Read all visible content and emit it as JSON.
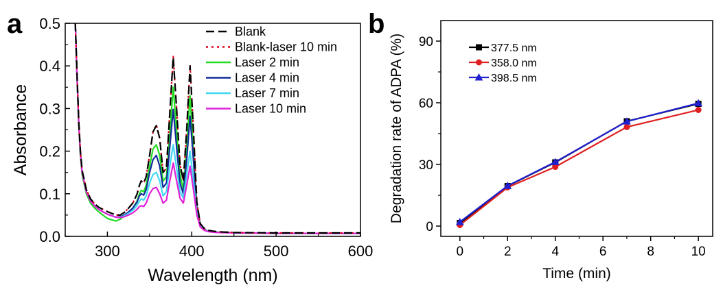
{
  "panels": [
    {
      "letter": "a"
    },
    {
      "letter": "b"
    }
  ],
  "chart_data": [
    {
      "type": "line",
      "xlabel": "Wavelength (nm)",
      "ylabel": "Absorbance",
      "xlim": [
        250,
        600
      ],
      "ylim": [
        0,
        0.5
      ],
      "xticks": [
        300,
        400,
        500,
        600
      ],
      "yticks": [
        0.0,
        0.1,
        0.2,
        0.3,
        0.4,
        0.5
      ],
      "xtick_labels": [
        "300",
        "400",
        "500",
        "600"
      ],
      "ytick_labels": [
        "0.0",
        "0.1",
        "0.2",
        "0.3",
        "0.4",
        "0.5"
      ],
      "legend_position": "top-right",
      "x": [
        262,
        264,
        266,
        268,
        270,
        275,
        280,
        285,
        290,
        300,
        310,
        315,
        320,
        325,
        330,
        335,
        338,
        340,
        343,
        346,
        350,
        354,
        358,
        362,
        366,
        370,
        374,
        378,
        382,
        386,
        390,
        394,
        398,
        402,
        406,
        410,
        415,
        420,
        430,
        450,
        500,
        550,
        600
      ],
      "series": [
        {
          "name": "Blank",
          "color": "#000000",
          "dash": "12,6",
          "values": [
            0.5,
            0.38,
            0.27,
            0.2,
            0.155,
            0.11,
            0.088,
            0.076,
            0.068,
            0.058,
            0.05,
            0.05,
            0.056,
            0.066,
            0.078,
            0.098,
            0.12,
            0.13,
            0.125,
            0.14,
            0.19,
            0.245,
            0.26,
            0.23,
            0.15,
            0.16,
            0.29,
            0.42,
            0.3,
            0.17,
            0.13,
            0.25,
            0.4,
            0.25,
            0.08,
            0.03,
            0.018,
            0.014,
            0.011,
            0.009,
            0.008,
            0.008,
            0.008
          ]
        },
        {
          "name": "Blank-laser 10 min",
          "color": "#e0001b",
          "dash": "3,5",
          "values": [
            0.5,
            0.38,
            0.27,
            0.2,
            0.155,
            0.11,
            0.088,
            0.076,
            0.068,
            0.058,
            0.05,
            0.05,
            0.056,
            0.066,
            0.078,
            0.098,
            0.12,
            0.13,
            0.125,
            0.14,
            0.19,
            0.245,
            0.262,
            0.23,
            0.15,
            0.16,
            0.29,
            0.422,
            0.3,
            0.17,
            0.13,
            0.25,
            0.402,
            0.25,
            0.08,
            0.03,
            0.018,
            0.014,
            0.011,
            0.009,
            0.008,
            0.008,
            0.008
          ]
        },
        {
          "name": "Laser 2 min",
          "color": "#22dd22",
          "dash": "",
          "values": [
            0.5,
            0.37,
            0.26,
            0.19,
            0.145,
            0.1,
            0.078,
            0.066,
            0.057,
            0.042,
            0.036,
            0.04,
            0.048,
            0.056,
            0.066,
            0.082,
            0.1,
            0.108,
            0.105,
            0.12,
            0.165,
            0.205,
            0.215,
            0.19,
            0.13,
            0.14,
            0.24,
            0.35,
            0.25,
            0.145,
            0.11,
            0.21,
            0.33,
            0.2,
            0.07,
            0.028,
            0.016,
            0.012,
            0.01,
            0.008,
            0.007,
            0.007,
            0.007
          ]
        },
        {
          "name": "Laser 4 min",
          "color": "#102a9a",
          "dash": "",
          "values": [
            0.5,
            0.375,
            0.265,
            0.195,
            0.15,
            0.105,
            0.083,
            0.071,
            0.063,
            0.052,
            0.045,
            0.046,
            0.05,
            0.057,
            0.066,
            0.08,
            0.095,
            0.1,
            0.097,
            0.11,
            0.15,
            0.18,
            0.19,
            0.165,
            0.115,
            0.125,
            0.21,
            0.298,
            0.21,
            0.125,
            0.1,
            0.18,
            0.282,
            0.18,
            0.065,
            0.026,
            0.016,
            0.012,
            0.01,
            0.008,
            0.007,
            0.007,
            0.007
          ]
        },
        {
          "name": "Laser 7 min",
          "color": "#40d8f0",
          "dash": "",
          "values": [
            0.5,
            0.375,
            0.265,
            0.195,
            0.15,
            0.105,
            0.083,
            0.071,
            0.063,
            0.052,
            0.045,
            0.045,
            0.048,
            0.054,
            0.061,
            0.072,
            0.083,
            0.088,
            0.085,
            0.095,
            0.125,
            0.145,
            0.15,
            0.13,
            0.095,
            0.105,
            0.165,
            0.215,
            0.16,
            0.105,
            0.09,
            0.145,
            0.2,
            0.13,
            0.055,
            0.024,
            0.015,
            0.012,
            0.01,
            0.008,
            0.007,
            0.007,
            0.007
          ]
        },
        {
          "name": "Laser 10 min",
          "color": "#e020d8",
          "dash": "",
          "values": [
            0.5,
            0.375,
            0.265,
            0.195,
            0.15,
            0.105,
            0.083,
            0.071,
            0.063,
            0.052,
            0.045,
            0.044,
            0.046,
            0.05,
            0.055,
            0.063,
            0.07,
            0.072,
            0.07,
            0.078,
            0.1,
            0.112,
            0.115,
            0.1,
            0.078,
            0.085,
            0.13,
            0.172,
            0.13,
            0.09,
            0.078,
            0.12,
            0.165,
            0.11,
            0.05,
            0.022,
            0.014,
            0.011,
            0.009,
            0.008,
            0.007,
            0.007,
            0.007
          ]
        }
      ]
    },
    {
      "type": "line",
      "xlabel": "Time (min)",
      "ylabel": "Degradation rate of ADPA (%)",
      "xlim": [
        -0.8,
        10.6
      ],
      "ylim": [
        -5,
        100
      ],
      "xticks": [
        0,
        2,
        4,
        6,
        8,
        10
      ],
      "yticks": [
        0,
        30,
        60,
        90
      ],
      "xtick_labels": [
        "0",
        "2",
        "4",
        "6",
        "8",
        "10"
      ],
      "ytick_labels": [
        "0",
        "30",
        "60",
        "90"
      ],
      "legend_position": "top-left",
      "x": [
        0,
        2,
        4,
        7,
        10
      ],
      "series": [
        {
          "name": "377.5 nm",
          "color": "#000000",
          "marker": "square",
          "values": [
            1.5,
            19.5,
            31.0,
            51.0,
            59.5
          ]
        },
        {
          "name": "358.0 nm",
          "color": "#e02020",
          "marker": "circle",
          "values": [
            0.5,
            18.8,
            28.8,
            48.2,
            56.5
          ]
        },
        {
          "name": "398.5 nm",
          "color": "#2020d0",
          "marker": "triangle",
          "values": [
            2.0,
            19.6,
            31.2,
            50.9,
            59.8
          ]
        }
      ]
    }
  ]
}
